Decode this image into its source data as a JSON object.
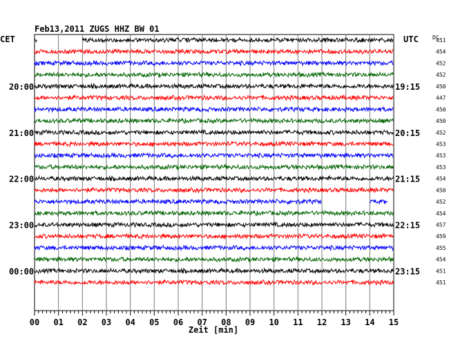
{
  "chart_data": {
    "type": "line",
    "title": "Feb13,2011   ZUGS HHZ BW 01",
    "left_zone": "CET",
    "right_zone": "UTC",
    "dc_header": "DC",
    "xlabel": "Zeit [min]",
    "x_ticks": [
      "00",
      "01",
      "02",
      "03",
      "04",
      "05",
      "06",
      "07",
      "08",
      "09",
      "10",
      "11",
      "12",
      "13",
      "14",
      "15"
    ],
    "xlim": [
      0,
      15
    ],
    "trace_colors": [
      "#000000",
      "#ff0000",
      "#0000ff",
      "#006400"
    ],
    "rows_per_hour": 4,
    "row_minutes": 15,
    "left_time_labels": [
      {
        "row": 4,
        "label": "20:00"
      },
      {
        "row": 8,
        "label": "21:00"
      },
      {
        "row": 12,
        "label": "22:00"
      },
      {
        "row": 16,
        "label": "23:00"
      },
      {
        "row": 20,
        "label": "00:00"
      }
    ],
    "right_time_labels": [
      {
        "row": 4,
        "label": "19:15"
      },
      {
        "row": 8,
        "label": "20:15"
      },
      {
        "row": 12,
        "label": "21:15"
      },
      {
        "row": 16,
        "label": "22:15"
      },
      {
        "row": 20,
        "label": "23:15"
      }
    ],
    "dc_offsets": [
      451,
      454,
      452,
      452,
      450,
      447,
      450,
      450,
      452,
      453,
      453,
      453,
      454,
      450,
      452,
      454,
      457,
      459,
      455,
      454,
      451,
      451
    ],
    "gaps": [
      {
        "row": 0,
        "start_min": 0.1,
        "end_min": 2.0
      },
      {
        "row": 14,
        "start_min": 12.0,
        "end_min": 14.0
      },
      {
        "row": 14,
        "start_min": 14.75,
        "end_min": 15.0
      }
    ],
    "grid": true
  }
}
